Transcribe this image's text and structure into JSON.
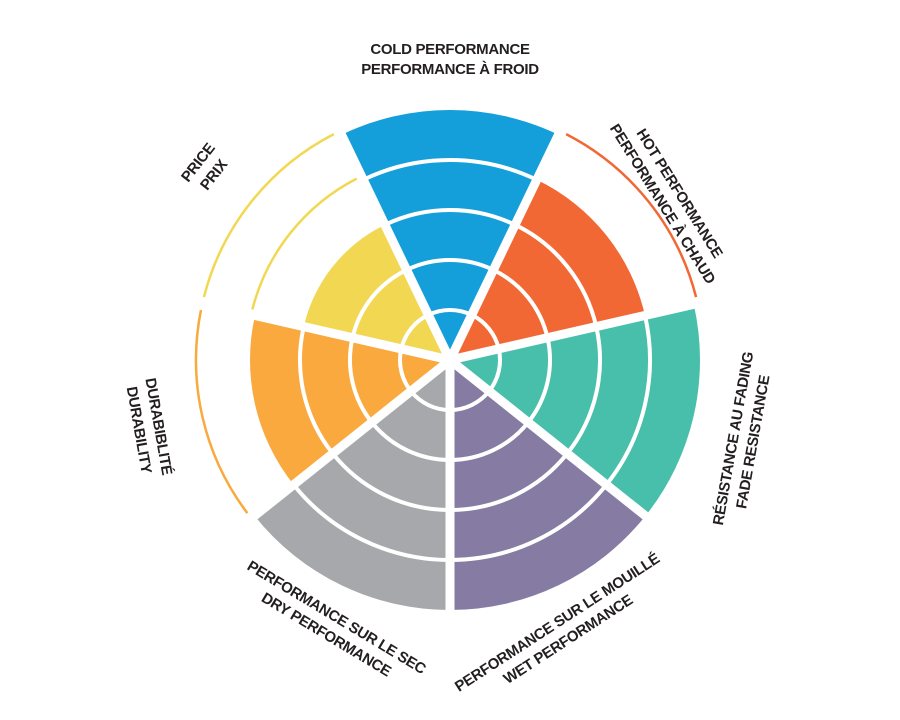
{
  "chart_data": {
    "type": "radial-bar",
    "levels": 5,
    "categories": [
      {
        "label_1": "COLD PERFORMANCE",
        "label_2": "PERFORMANCE À FROID",
        "value": 5,
        "color": "#149fda"
      },
      {
        "label_1": "HOT PERFORMANCE",
        "label_2": "PERFORMANCE À CHAUD",
        "value": 4,
        "color": "#f26835"
      },
      {
        "label_1": "RÉSISTANCE AU FADING",
        "label_2": "FADE RESISTANCE",
        "value": 5,
        "color": "#47bfaa"
      },
      {
        "label_1": "PERFORMANCE SUR LE MOUILLÉ",
        "label_2": "WET PERFORMANCE",
        "value": 5,
        "color": "#857ba3"
      },
      {
        "label_1": "PERFORMANCE SUR LE SEC",
        "label_2": "DRY PERFORMANCE",
        "value": 5,
        "color": "#a7a8ab"
      },
      {
        "label_1": "DURABIBLITÉ",
        "label_2": "DURABILITY",
        "value": 4,
        "color": "#f9a93e"
      },
      {
        "label_1": "PRICE",
        "label_2": "PRIX",
        "value": 3,
        "color": "#f2d852"
      }
    ]
  }
}
